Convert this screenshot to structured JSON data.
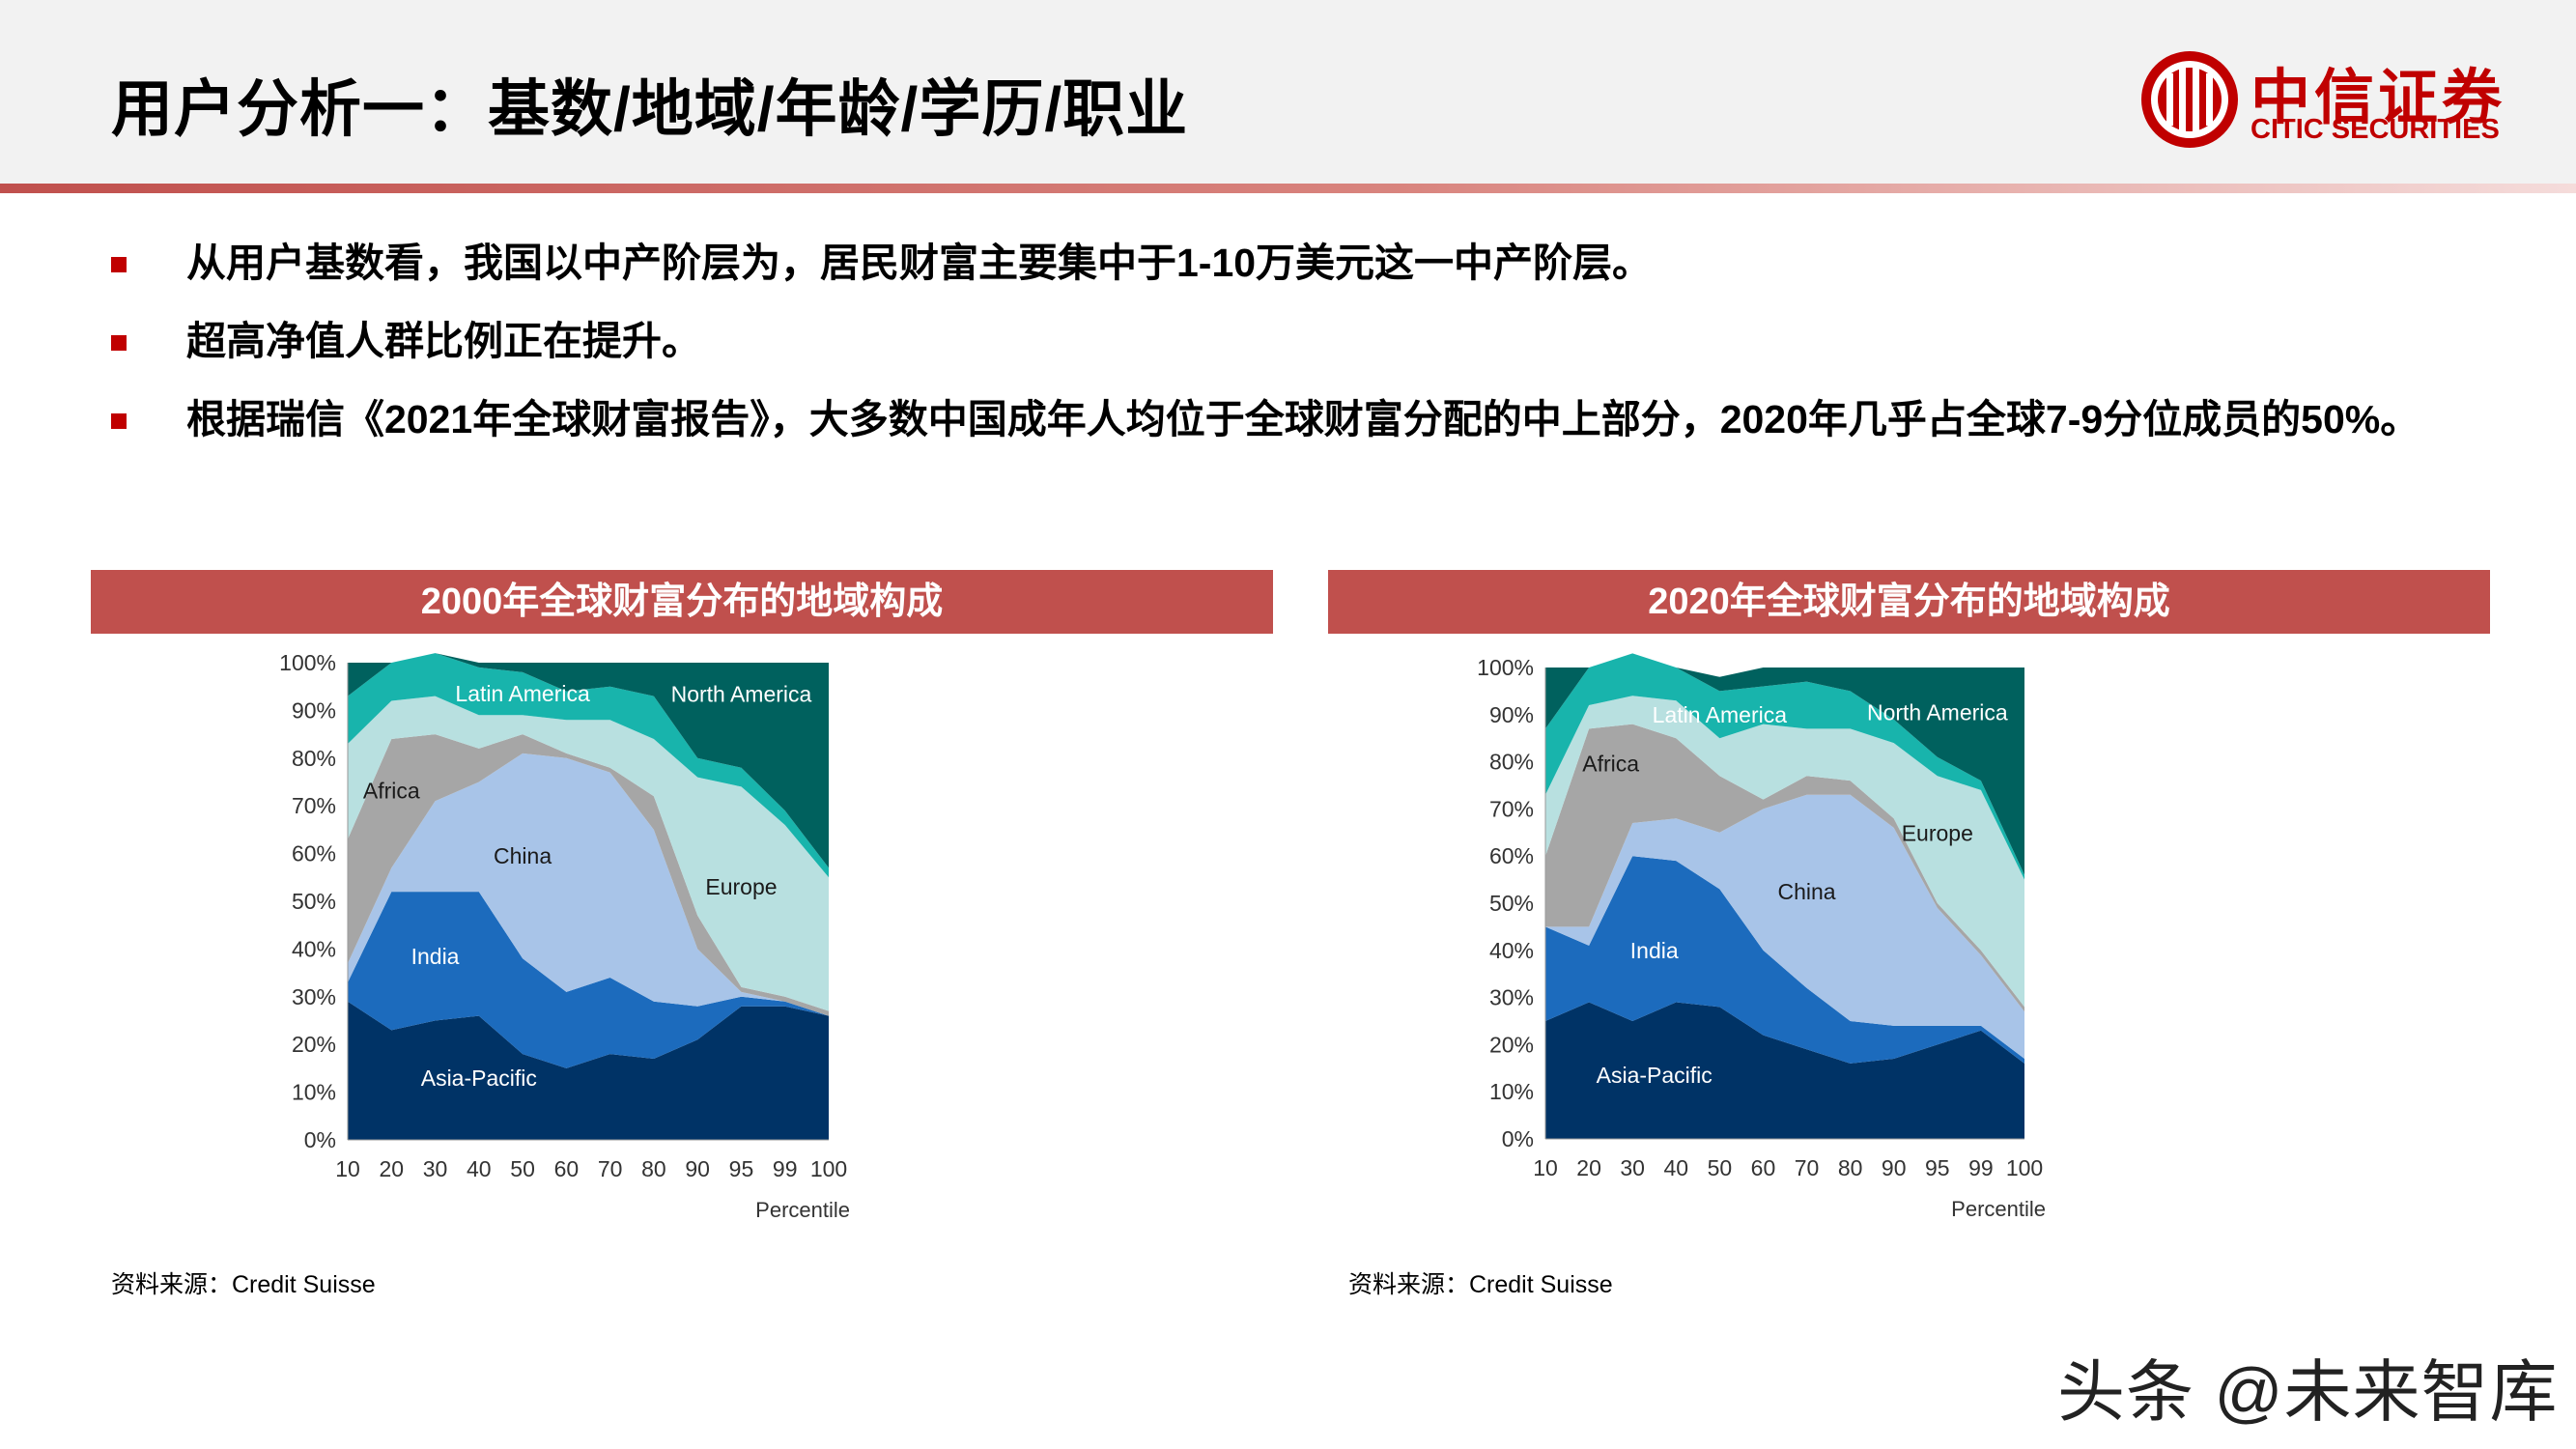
{
  "header": {
    "title": "用户分析一：基数/地域/年龄/学历/职业",
    "logo_name": "中信证券",
    "logo_en": "CITIC SECURITIES"
  },
  "bullets": [
    "从用户基数看，我国以中产阶层为，居民财富主要集中于1-10万美元这一中产阶层。",
    "超高净值人群比例正在提升。",
    "根据瑞信《2021年全球财富报告》，大多数中国成年人均位于全球财富分配的中上部分，2020年几乎占全球7-9分位成员的50%。"
  ],
  "colors": {
    "brand_red": "#c00000",
    "panel_red": "#c0504d",
    "asia_pacific": "#003366",
    "india": "#1c6bbd",
    "china": "#a8c4e8",
    "africa": "#a6a6a6",
    "latin_america": "#18b4ac",
    "europe": "#b8e0e0",
    "north_america": "#00615e"
  },
  "chart_data": [
    {
      "type": "area",
      "stacked": true,
      "title": "2000年全球财富分布的地域构成",
      "xlabel": "Percentile",
      "ylabel": "",
      "x": [
        10,
        20,
        30,
        40,
        50,
        60,
        70,
        80,
        90,
        95,
        99,
        100
      ],
      "x_tick_labels": [
        "10",
        "20",
        "30",
        "40",
        "50",
        "60",
        "70",
        "80",
        "90",
        "95",
        "99",
        "100"
      ],
      "y_tick_labels": [
        "0%",
        "10%",
        "20%",
        "30%",
        "40%",
        "50%",
        "60%",
        "70%",
        "80%",
        "90%",
        "100%"
      ],
      "ylim": [
        0,
        100
      ],
      "series": [
        {
          "name": "Asia-Pacific",
          "values": [
            29,
            23,
            25,
            26,
            18,
            15,
            18,
            17,
            21,
            28,
            28,
            26
          ]
        },
        {
          "name": "India",
          "values": [
            4,
            29,
            27,
            26,
            20,
            16,
            16,
            12,
            7,
            2,
            1,
            0
          ]
        },
        {
          "name": "China",
          "values": [
            4,
            5,
            19,
            23,
            43,
            49,
            43,
            36,
            12,
            1,
            0,
            0
          ]
        },
        {
          "name": "Africa",
          "values": [
            26,
            27,
            14,
            7,
            4,
            1,
            1,
            7,
            7,
            1,
            1,
            1
          ]
        },
        {
          "name": "Europe",
          "values": [
            20,
            8,
            8,
            7,
            4,
            7,
            10,
            12,
            29,
            42,
            36,
            28
          ]
        },
        {
          "name": "Latin America",
          "values": [
            10,
            8,
            9,
            10,
            9,
            6,
            7,
            9,
            4,
            4,
            3,
            2
          ]
        },
        {
          "name": "North America",
          "values": [
            7,
            0,
            0,
            1,
            2,
            6,
            5,
            7,
            20,
            22,
            31,
            43
          ]
        }
      ],
      "source": "资料来源：Credit Suisse"
    },
    {
      "type": "area",
      "stacked": true,
      "title": "2020年全球财富分布的地域构成",
      "xlabel": "Percentile",
      "ylabel": "",
      "x": [
        10,
        20,
        30,
        40,
        50,
        60,
        70,
        80,
        90,
        95,
        99,
        100
      ],
      "x_tick_labels": [
        "10",
        "20",
        "30",
        "40",
        "50",
        "60",
        "70",
        "80",
        "90",
        "95",
        "99",
        "100"
      ],
      "y_tick_labels": [
        "0%",
        "10%",
        "20%",
        "30%",
        "40%",
        "50%",
        "60%",
        "70%",
        "80%",
        "90%",
        "100%"
      ],
      "ylim": [
        0,
        100
      ],
      "series": [
        {
          "name": "Asia-Pacific",
          "values": [
            25,
            29,
            25,
            29,
            28,
            22,
            19,
            16,
            17,
            20,
            23,
            16
          ]
        },
        {
          "name": "India",
          "values": [
            20,
            12,
            35,
            30,
            25,
            18,
            13,
            9,
            7,
            4,
            1,
            1
          ]
        },
        {
          "name": "China",
          "values": [
            0,
            4,
            7,
            9,
            12,
            30,
            41,
            48,
            42,
            25,
            15,
            10
          ]
        },
        {
          "name": "Africa",
          "values": [
            15,
            42,
            21,
            17,
            12,
            2,
            4,
            3,
            2,
            1,
            1,
            1
          ]
        },
        {
          "name": "Europe",
          "values": [
            13,
            5,
            6,
            8,
            8,
            16,
            10,
            11,
            16,
            27,
            34,
            27
          ]
        },
        {
          "name": "Latin America",
          "values": [
            14,
            8,
            9,
            7,
            10,
            8,
            10,
            8,
            5,
            4,
            2,
            1
          ]
        },
        {
          "name": "North America",
          "values": [
            13,
            0,
            0,
            0,
            3,
            4,
            3,
            5,
            11,
            19,
            24,
            44
          ]
        }
      ],
      "source": "资料来源：Credit Suisse"
    }
  ],
  "watermark": "头条 @未来智库"
}
